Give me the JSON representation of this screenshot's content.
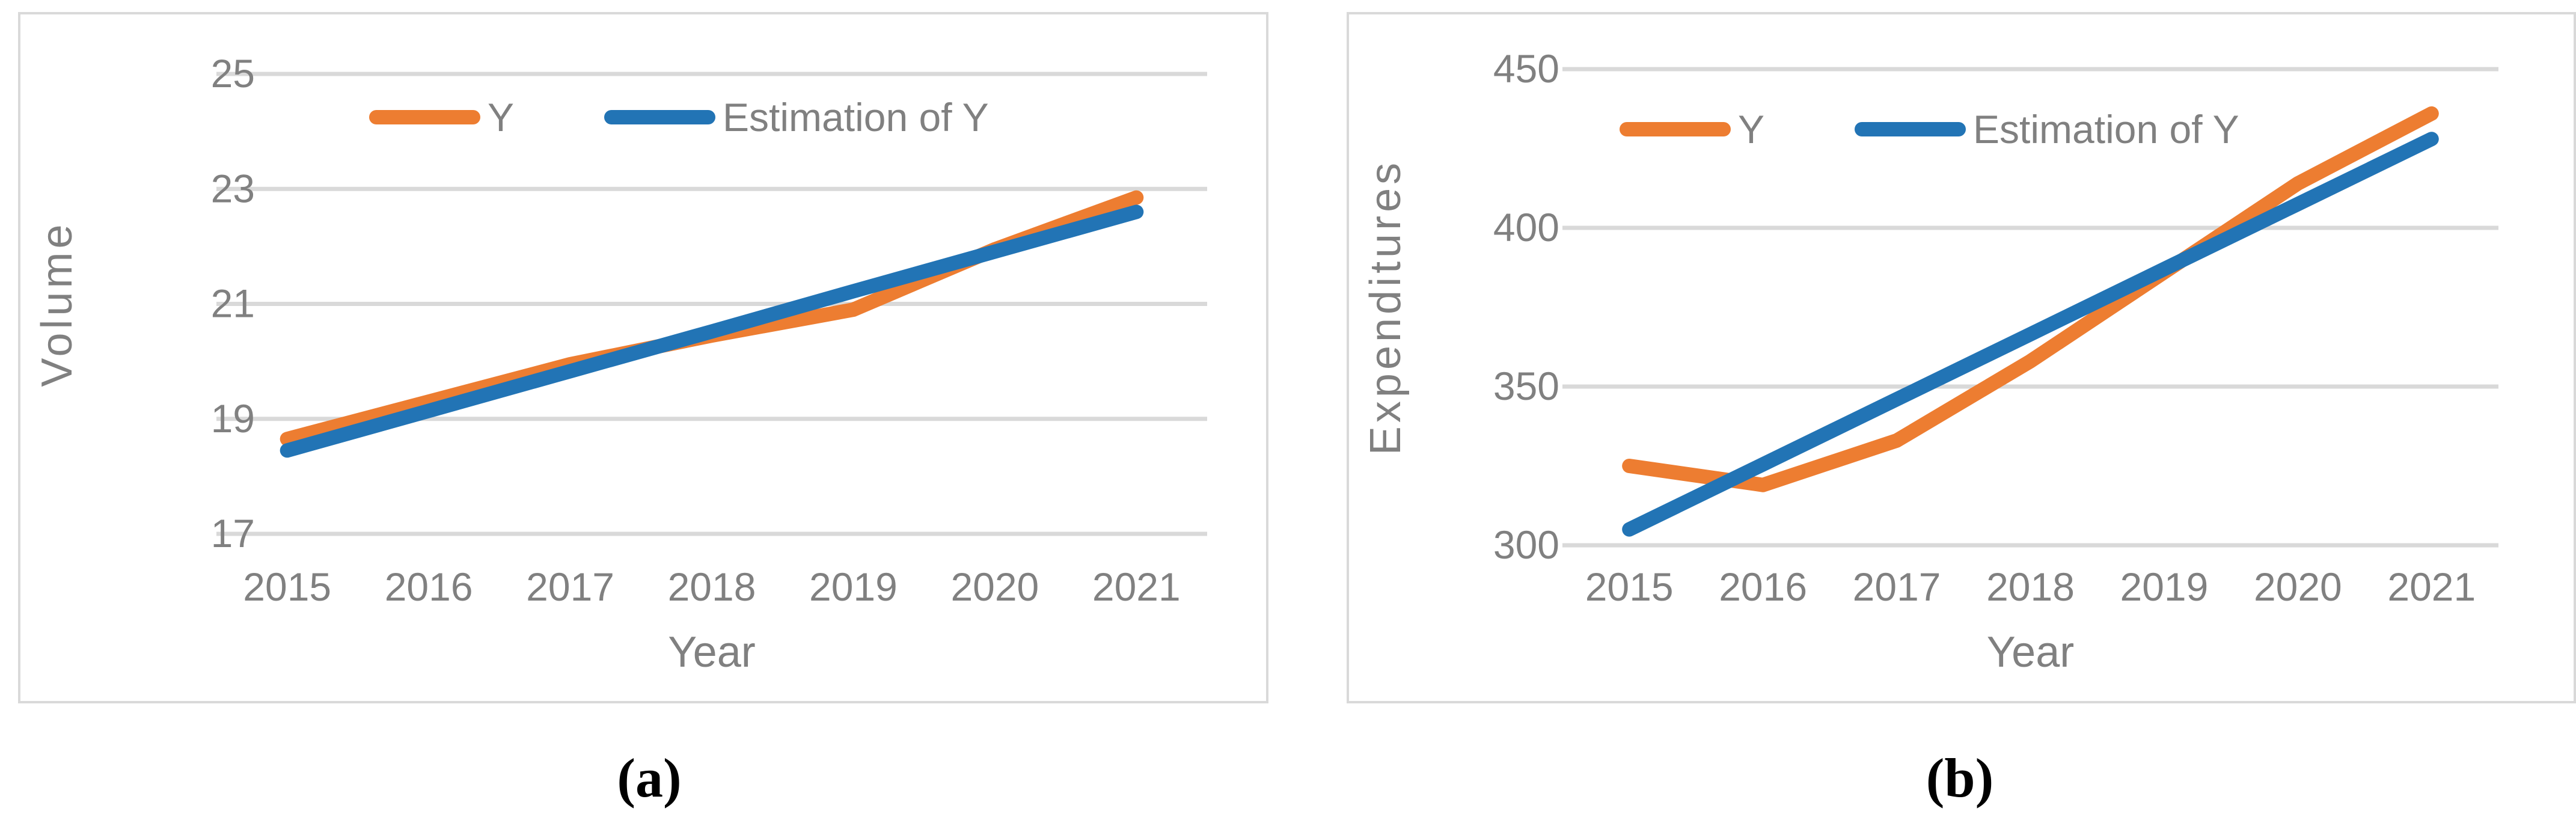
{
  "figure": {
    "caption_a": "(a)",
    "caption_b": "(b)",
    "colors": {
      "series_y": "#ED7D31",
      "series_estimation": "#2274B5",
      "gridline": "#D9D9D9",
      "axis_text": "#808080",
      "panel_border": "#D9D9D9",
      "caption_text": "#000000"
    }
  },
  "chart_data": [
    {
      "type": "line",
      "panel_label": "(a)",
      "xlabel": "Year",
      "ylabel": "Volume",
      "categories": [
        "2015",
        "2016",
        "2017",
        "2018",
        "2019",
        "2020",
        "2021"
      ],
      "series": [
        {
          "name": "Y",
          "color_key": "series_y",
          "values": [
            18.65,
            19.3,
            19.95,
            20.45,
            20.9,
            21.95,
            22.85
          ]
        },
        {
          "name": "Estimation of Y",
          "color_key": "series_estimation",
          "values": [
            18.45,
            19.14,
            19.83,
            20.52,
            21.22,
            21.91,
            22.6
          ]
        }
      ],
      "ylim": [
        17,
        25
      ],
      "yticks": [
        17,
        19,
        21,
        23,
        25
      ],
      "grid": true,
      "legend_position": "top-inside"
    },
    {
      "type": "line",
      "panel_label": "(b)",
      "xlabel": "Year",
      "ylabel": "Expenditures",
      "categories": [
        "2015",
        "2016",
        "2017",
        "2018",
        "2019",
        "2020",
        "2021"
      ],
      "series": [
        {
          "name": "Y",
          "color_key": "series_y",
          "values": [
            325,
            319,
            333,
            358,
            386,
            414,
            436
          ]
        },
        {
          "name": "Estimation of Y",
          "color_key": "series_estimation",
          "values": [
            305,
            325.5,
            346,
            366.5,
            387,
            407.5,
            428
          ]
        }
      ],
      "ylim": [
        300,
        450
      ],
      "yticks": [
        300,
        350,
        400,
        450
      ],
      "grid": true,
      "legend_position": "top-inside"
    }
  ]
}
